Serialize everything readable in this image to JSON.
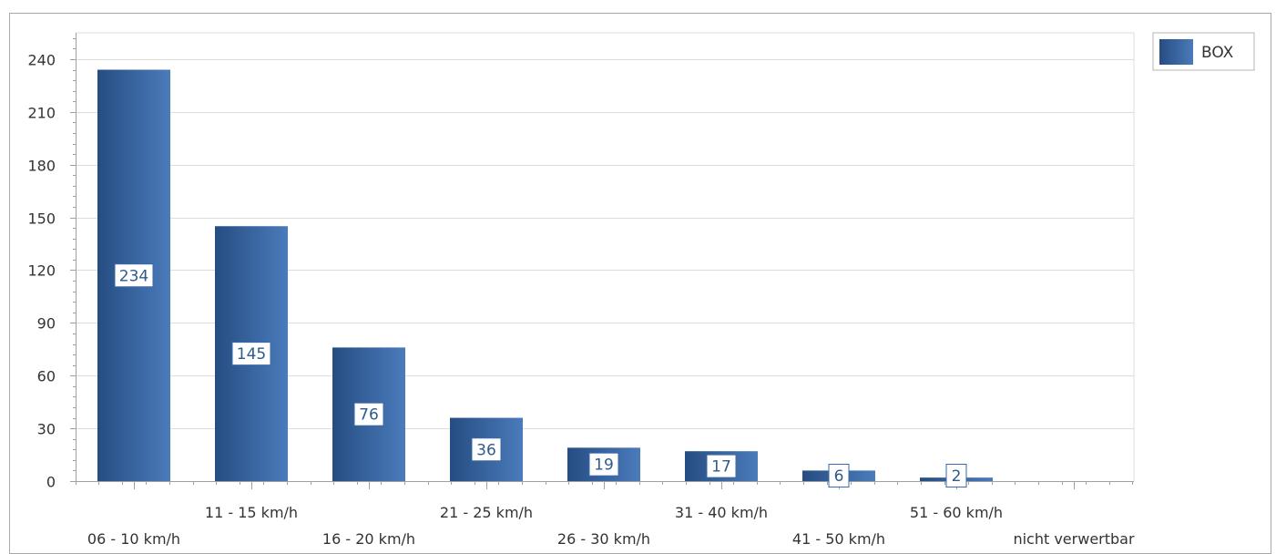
{
  "chart_data": {
    "type": "bar",
    "title": "",
    "xlabel": "",
    "ylabel": "",
    "categories": [
      "06 - 10 km/h",
      "11 - 15 km/h",
      "16 - 20 km/h",
      "21 - 25 km/h",
      "26 - 30 km/h",
      "31 - 40 km/h",
      "41 - 50 km/h",
      "51 - 60 km/h",
      "nicht verwertbar"
    ],
    "series": [
      {
        "name": "BOX",
        "values": [
          234,
          145,
          76,
          36,
          19,
          17,
          6,
          2,
          0
        ],
        "data_labels": [
          "234",
          "145",
          "76",
          "36",
          "19",
          "17",
          "6",
          "2",
          ""
        ]
      }
    ],
    "ylim": [
      0,
      255
    ],
    "y_ticks": [
      0,
      30,
      60,
      90,
      120,
      150,
      180,
      210,
      240
    ],
    "y_minor_step": 6,
    "grid": true,
    "legend_position": "top-right",
    "colors": {
      "bar_dark": "#264d82",
      "bar_mid": "#3b6aa7",
      "bar_light": "#4a7bbb",
      "grid": "#dcdcdc",
      "axis": "#a0a0a0",
      "label_border": "#3a6aa8"
    }
  }
}
